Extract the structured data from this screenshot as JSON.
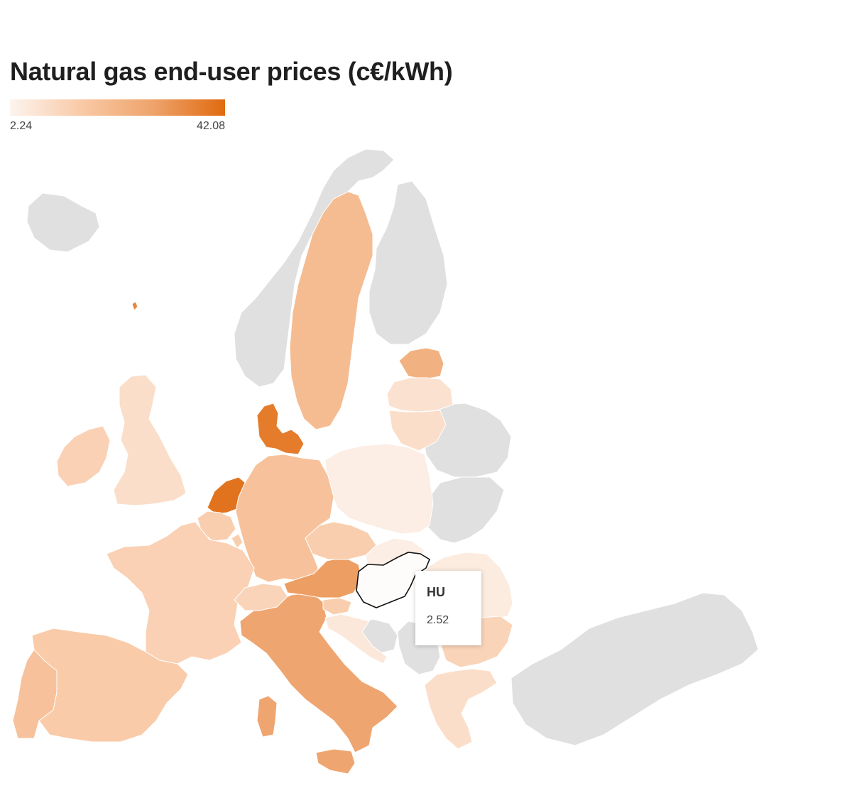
{
  "title": "Natural gas end-user prices (c€/kWh)",
  "legend": {
    "min_label": "2.24",
    "max_label": "42.08",
    "min": 2.24,
    "max": 42.08,
    "color_low": "#fdf4ee",
    "color_high": "#e06a10"
  },
  "no_data_color": "#e0e0e0",
  "tooltip": {
    "code": "HU",
    "value": "2.52"
  },
  "regions": [
    {
      "code": "SE",
      "value": 20
    },
    {
      "code": "DK",
      "value": 38
    },
    {
      "code": "NL",
      "value": 40
    },
    {
      "code": "EE",
      "value": 24
    },
    {
      "code": "LV",
      "value": 8
    },
    {
      "code": "LT",
      "value": 9
    },
    {
      "code": "PL",
      "value": 4
    },
    {
      "code": "DE",
      "value": 18
    },
    {
      "code": "BE",
      "value": 14
    },
    {
      "code": "LU",
      "value": 14
    },
    {
      "code": "FR",
      "value": 13
    },
    {
      "code": "ES",
      "value": 15
    },
    {
      "code": "PT",
      "value": 18
    },
    {
      "code": "IE",
      "value": 13
    },
    {
      "code": "GB",
      "value": 9
    },
    {
      "code": "IT",
      "value": 28
    },
    {
      "code": "AT",
      "value": 30
    },
    {
      "code": "CZ",
      "value": 14
    },
    {
      "code": "SK",
      "value": 4
    },
    {
      "code": "SI",
      "value": 14
    },
    {
      "code": "CH",
      "value": 12
    },
    {
      "code": "HR",
      "value": 6
    },
    {
      "code": "HU",
      "value": 2.52
    },
    {
      "code": "RO",
      "value": 5
    },
    {
      "code": "BG",
      "value": 12
    },
    {
      "code": "GR",
      "value": 9
    },
    {
      "code": "FO",
      "value": 36
    }
  ]
}
